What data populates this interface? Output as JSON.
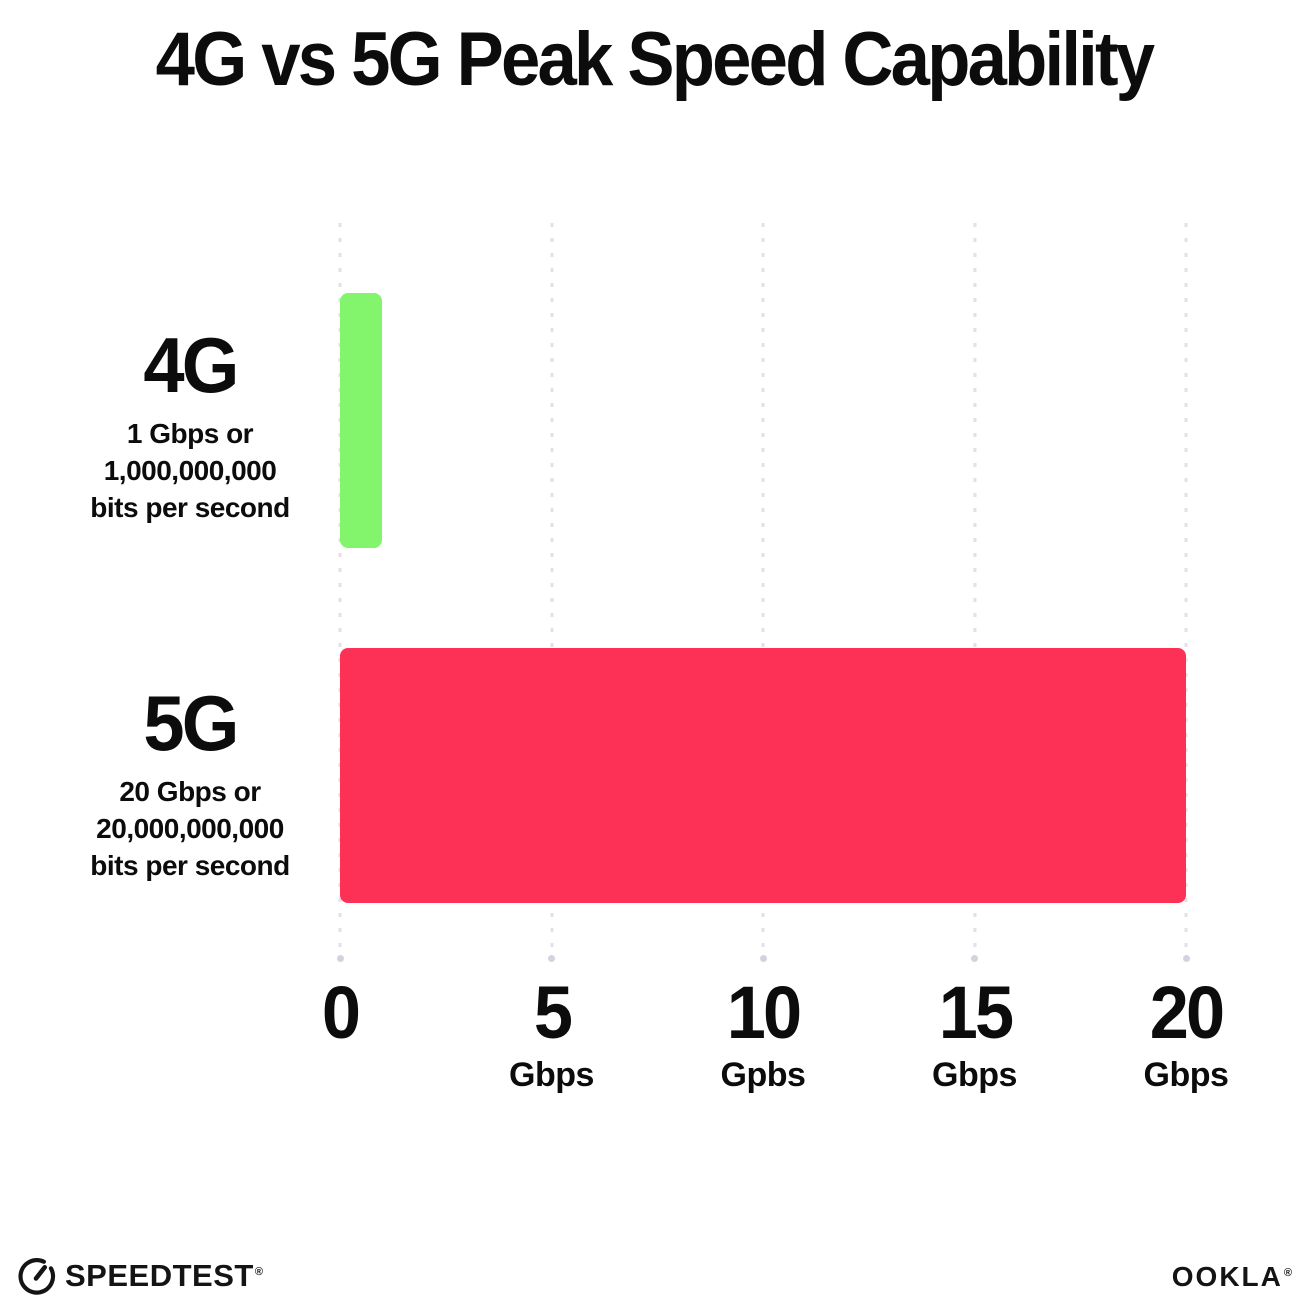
{
  "title": "4G vs 5G Peak Speed Capability",
  "chart_data": {
    "type": "bar",
    "orientation": "horizontal",
    "title": "4G vs 5G Peak Speed Capability",
    "categories": [
      "4G",
      "5G"
    ],
    "values": [
      1,
      20
    ],
    "unit": "Gbps",
    "xlim": [
      0,
      20
    ],
    "x_ticks": [
      0,
      5,
      10,
      15,
      20
    ],
    "x_tick_units": [
      "",
      "Gbps",
      "Gpbs",
      "Gbps",
      "Gbps"
    ],
    "grid": "dotted-vertical",
    "legend": "none",
    "bar_colors": [
      "#83f56d",
      "#fd3056"
    ],
    "annotations": [
      "4G: 1 Gbps or 1,000,000,000 bits per second",
      "5G: 20 Gbps or 20,000,000,000 bits per second"
    ]
  },
  "rows": [
    {
      "name": "4G",
      "desc": [
        "1 Gbps or",
        "1,000,000,000",
        "bits per second"
      ]
    },
    {
      "name": "5G",
      "desc": [
        "20 Gbps or",
        "20,000,000,000",
        "bits per second"
      ]
    }
  ],
  "axis": {
    "ticks": [
      {
        "label": "0",
        "unit": ""
      },
      {
        "label": "5",
        "unit": "Gbps"
      },
      {
        "label": "10",
        "unit": "Gpbs"
      },
      {
        "label": "15",
        "unit": "Gbps"
      },
      {
        "label": "20",
        "unit": "Gbps"
      }
    ]
  },
  "footer": {
    "speedtest_label": "SPEEDTEST",
    "speedtest_tm": "®",
    "ookla_label": "OOKLA",
    "ookla_tm": "®"
  },
  "colors": {
    "bar_4g": "#83f56d",
    "bar_5g": "#fd3056",
    "grid_dot": "#e1e1ea",
    "text": "#0c0c0c",
    "background": "#ffffff"
  }
}
